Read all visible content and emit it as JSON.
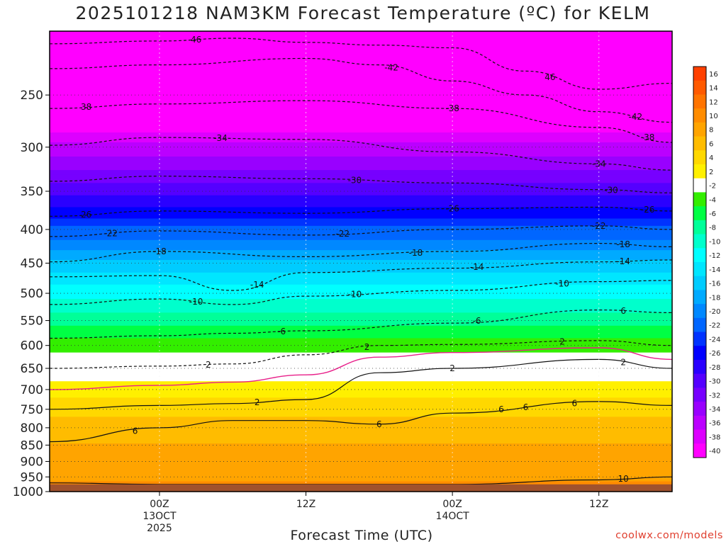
{
  "chart_data": {
    "type": "heatmap",
    "title": "2025101218 NAM3KM Forecast Temperature (ºC) for KELM",
    "xlabel": "Forecast Time (UTC)",
    "ylabel": "Pressure (hPa)",
    "credit": "coolwx.com/models",
    "y_scale": "log",
    "y_range": [
      1000,
      200
    ],
    "y_ticks": [
      250,
      300,
      350,
      400,
      450,
      500,
      550,
      600,
      650,
      700,
      750,
      800,
      850,
      900,
      950,
      1000
    ],
    "x_range_hours": [
      -9,
      42
    ],
    "x_ticks": [
      {
        "hour": 0,
        "line1": "00Z",
        "line2": "13OCT",
        "line3": "2025"
      },
      {
        "hour": 12,
        "line1": "12Z",
        "line2": "",
        "line3": ""
      },
      {
        "hour": 24,
        "line1": "00Z",
        "line2": "14OCT",
        "line3": ""
      },
      {
        "hour": 36,
        "line1": "12Z",
        "line2": "",
        "line3": ""
      },
      {
        "hour": 48,
        "line1": "00Z",
        "line2": "15OCT",
        "line3": ""
      }
    ],
    "surface_pressure": 975,
    "colorbar_labels": [
      "16",
      "14",
      "12",
      "10",
      "8",
      "6",
      "4",
      "2",
      "-2",
      "-4",
      "-6",
      "-8",
      "-10",
      "-12",
      "-14",
      "-16",
      "-18",
      "-20",
      "-22",
      "-24",
      "-26",
      "-28",
      "-30",
      "-32",
      "-34",
      "-36",
      "-38",
      "-40"
    ],
    "colorbar_colors": [
      "#ff4000",
      "#ff5a00",
      "#ff7400",
      "#ff8c00",
      "#ffa400",
      "#ffbc00",
      "#ffd800",
      "#fff000",
      "#ffffff",
      "#33ee00",
      "#00ff44",
      "#00ff99",
      "#00ffcc",
      "#00ffff",
      "#00e6ff",
      "#00ccff",
      "#00aaff",
      "#0088ff",
      "#0066ff",
      "#0033ff",
      "#0000ff",
      "#2a00ff",
      "#5500ff",
      "#7700ff",
      "#9900ff",
      "#bb00ff",
      "#dd00ff",
      "#ff00ff"
    ],
    "temperature_profile": [
      {
        "p": 200,
        "t": -50
      },
      {
        "p": 250,
        "t": -46
      },
      {
        "p": 300,
        "t": -36
      },
      {
        "p": 350,
        "t": -29
      },
      {
        "p": 400,
        "t": -22
      },
      {
        "p": 450,
        "t": -16
      },
      {
        "p": 500,
        "t": -11
      },
      {
        "p": 550,
        "t": -7
      },
      {
        "p": 600,
        "t": -3
      },
      {
        "p": 650,
        "t": 0
      },
      {
        "p": 700,
        "t": 3
      },
      {
        "p": 750,
        "t": 5
      },
      {
        "p": 800,
        "t": 7
      },
      {
        "p": 850,
        "t": 8
      },
      {
        "p": 900,
        "t": 8
      },
      {
        "p": 950,
        "t": 9
      },
      {
        "p": 1000,
        "t": 12
      }
    ],
    "isotherms": [
      {
        "t": -46,
        "label": "46",
        "hours": [
          -9,
          0,
          6,
          12,
          18,
          24,
          30,
          36,
          42
        ],
        "p": [
          209,
          207,
          205,
          208,
          210,
          212,
          230,
          245,
          240
        ],
        "labels": [
          {
            "hour": 3,
            "text": "46"
          },
          {
            "hour": 32,
            "text": "46"
          }
        ]
      },
      {
        "t": -42,
        "label": "-42",
        "hours": [
          -9,
          0,
          12,
          18,
          24,
          30,
          36,
          42
        ],
        "p": [
          228,
          225,
          220,
          225,
          238,
          250,
          265,
          275
        ],
        "labels": [
          {
            "hour": 19,
            "text": "-42"
          },
          {
            "hour": 39,
            "text": "-42"
          }
        ]
      },
      {
        "t": -38,
        "label": "-38",
        "hours": [
          -9,
          0,
          12,
          24,
          36,
          42
        ],
        "p": [
          262,
          258,
          255,
          262,
          280,
          295
        ],
        "labels": [
          {
            "hour": -6,
            "text": "38"
          },
          {
            "hour": 24,
            "text": "-38"
          },
          {
            "hour": 40,
            "text": "-38"
          }
        ]
      },
      {
        "t": -34,
        "label": "-34",
        "hours": [
          -9,
          0,
          12,
          24,
          36,
          42
        ],
        "p": [
          298,
          290,
          292,
          305,
          318,
          325
        ],
        "labels": [
          {
            "hour": 5,
            "text": "-34"
          },
          {
            "hour": 36,
            "text": "-34"
          }
        ]
      },
      {
        "t": -30,
        "label": "-30",
        "hours": [
          -9,
          0,
          12,
          24,
          36,
          42
        ],
        "p": [
          338,
          332,
          335,
          340,
          348,
          352
        ],
        "labels": [
          {
            "hour": 16,
            "text": "-30"
          },
          {
            "hour": 37,
            "text": "-30"
          }
        ]
      },
      {
        "t": -26,
        "label": "-26",
        "hours": [
          -9,
          0,
          12,
          24,
          36,
          42
        ],
        "p": [
          382,
          375,
          378,
          372,
          370,
          375
        ],
        "labels": [
          {
            "hour": -6,
            "text": "26"
          },
          {
            "hour": 24,
            "text": "-26"
          },
          {
            "hour": 40,
            "text": "-26"
          }
        ]
      },
      {
        "t": -22,
        "label": "-22",
        "hours": [
          -9,
          0,
          12,
          24,
          36,
          42
        ],
        "p": [
          410,
          402,
          408,
          400,
          395,
          400
        ],
        "labels": [
          {
            "hour": -4,
            "text": "-22"
          },
          {
            "hour": 36,
            "text": "-22"
          },
          {
            "hour": 15,
            "text": "-22"
          }
        ]
      },
      {
        "t": -18,
        "label": "-18",
        "hours": [
          -9,
          0,
          12,
          24,
          36,
          42
        ],
        "p": [
          448,
          432,
          440,
          432,
          420,
          425
        ],
        "labels": [
          {
            "hour": 0,
            "text": "-18"
          },
          {
            "hour": 21,
            "text": "-18"
          },
          {
            "hour": 38,
            "text": "-18"
          }
        ]
      },
      {
        "t": -14,
        "label": "-14",
        "hours": [
          -9,
          0,
          6,
          12,
          24,
          36,
          42
        ],
        "p": [
          472,
          470,
          495,
          465,
          458,
          448,
          445
        ],
        "labels": [
          {
            "hour": 8,
            "text": "-14"
          },
          {
            "hour": 26,
            "text": "-14"
          },
          {
            "hour": 38,
            "text": "-14"
          }
        ]
      },
      {
        "t": -10,
        "label": "-10",
        "hours": [
          -9,
          0,
          6,
          12,
          24,
          36,
          42
        ],
        "p": [
          520,
          510,
          520,
          505,
          495,
          480,
          478
        ],
        "labels": [
          {
            "hour": 3,
            "text": "-10"
          },
          {
            "hour": 16,
            "text": "-10"
          },
          {
            "hour": 33,
            "text": "-10"
          }
        ]
      },
      {
        "t": -6,
        "label": "-6",
        "hours": [
          -9,
          0,
          6,
          12,
          24,
          36,
          42
        ],
        "p": [
          585,
          580,
          575,
          570,
          555,
          530,
          535
        ],
        "labels": [
          {
            "hour": 10,
            "text": "-6"
          },
          {
            "hour": 26,
            "text": "-6"
          },
          {
            "hour": 38,
            "text": "6"
          }
        ]
      },
      {
        "t": -2,
        "label": "2",
        "hours": [
          -9,
          0,
          6,
          12,
          18,
          24,
          36,
          42
        ],
        "p": [
          650,
          645,
          640,
          620,
          600,
          598,
          590,
          600
        ],
        "labels": [
          {
            "hour": 4,
            "text": "2"
          },
          {
            "hour": 17,
            "text": "2"
          },
          {
            "hour": 33,
            "text": "2"
          }
        ]
      },
      {
        "t": 0,
        "label": "",
        "hours": [
          -9,
          0,
          6,
          12,
          18,
          24,
          36,
          42
        ],
        "p": [
          700,
          690,
          682,
          665,
          625,
          615,
          605,
          630
        ],
        "labels": []
      },
      {
        "t": 2,
        "label": "2",
        "hours": [
          -9,
          0,
          6,
          12,
          18,
          24,
          36,
          42
        ],
        "p": [
          750,
          740,
          735,
          725,
          660,
          650,
          630,
          650
        ],
        "labels": [
          {
            "hour": 8,
            "text": "2"
          },
          {
            "hour": 24,
            "text": "2"
          },
          {
            "hour": 38,
            "text": "2"
          }
        ]
      },
      {
        "t": 6,
        "label": "6",
        "hours": [
          -9,
          0,
          6,
          12,
          18,
          24,
          36,
          42
        ],
        "p": [
          840,
          800,
          780,
          780,
          790,
          760,
          730,
          740
        ],
        "labels": [
          {
            "hour": -2,
            "text": "6"
          },
          {
            "hour": 18,
            "text": "6"
          },
          {
            "hour": 28,
            "text": "6"
          },
          {
            "hour": 30,
            "text": "6"
          },
          {
            "hour": 34,
            "text": "6"
          }
        ]
      },
      {
        "t": 10,
        "label": "10",
        "hours": [
          -9,
          0,
          12,
          24,
          36,
          42
        ],
        "p": [
          970,
          975,
          975,
          975,
          960,
          950
        ],
        "labels": [
          {
            "hour": 38,
            "text": "10"
          }
        ]
      }
    ]
  }
}
